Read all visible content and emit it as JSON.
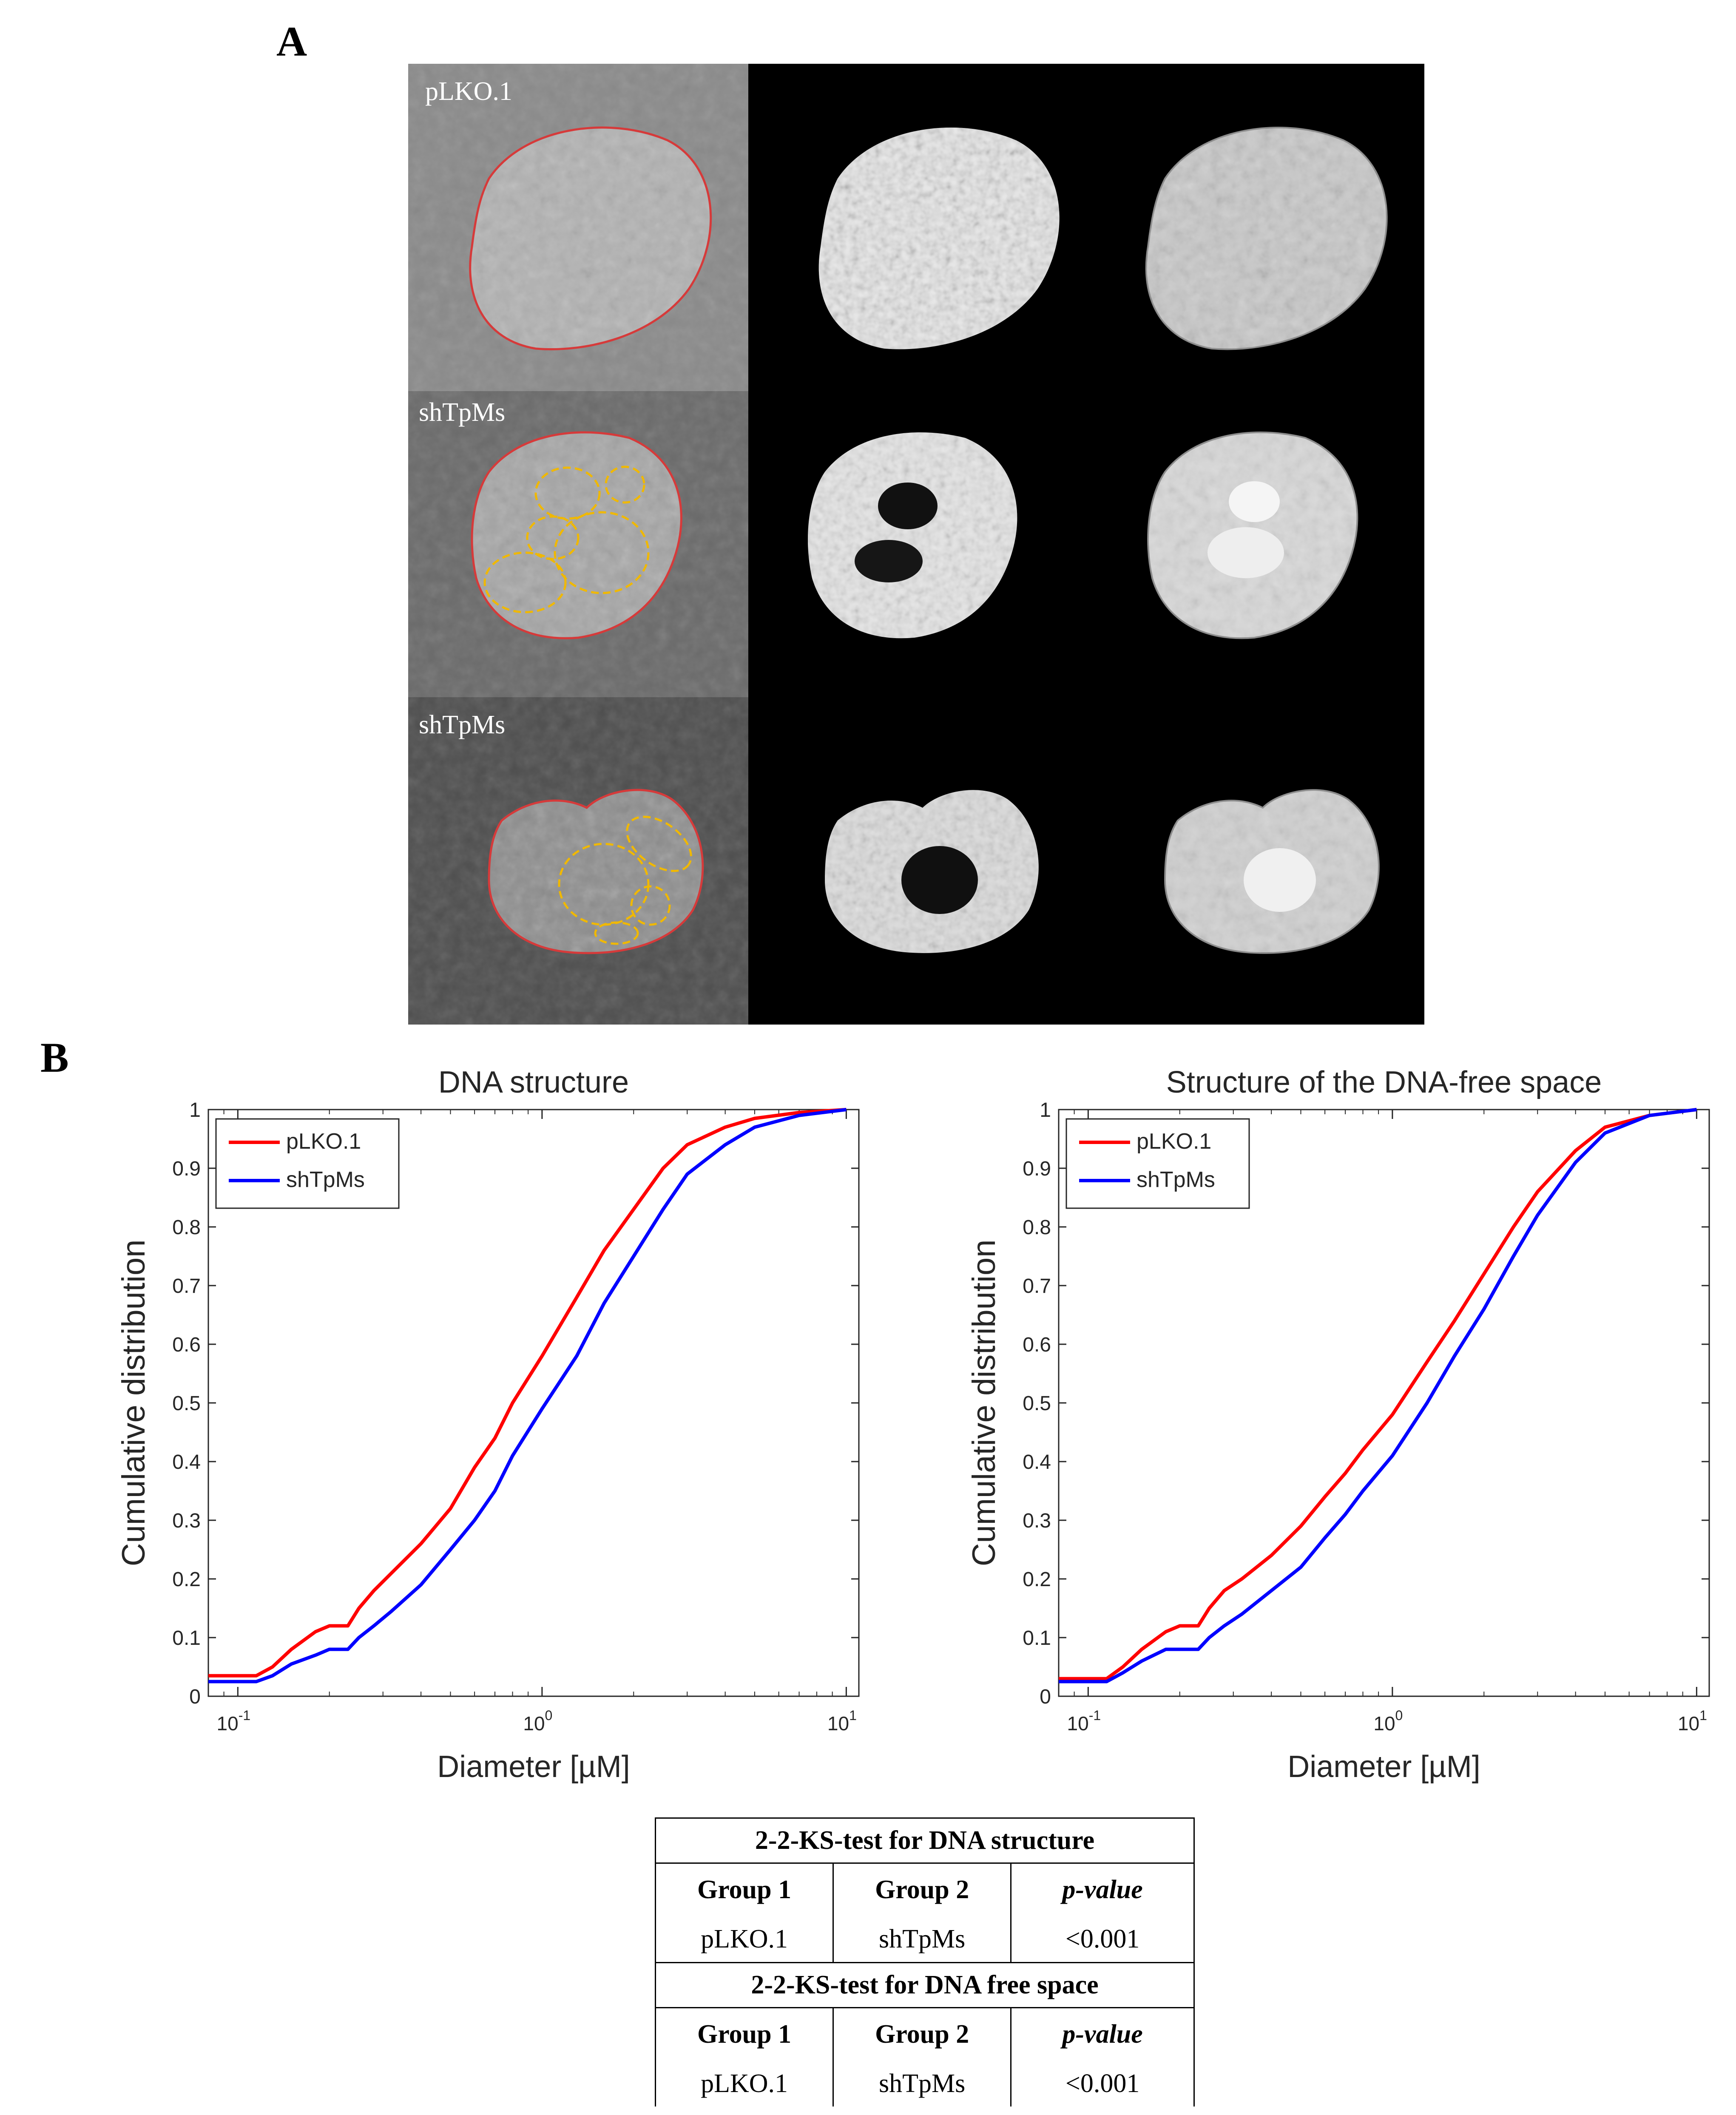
{
  "figure": {
    "panel_a_letter": "A",
    "panel_b_letter": "B"
  },
  "panel_a": {
    "row_labels": [
      "pLKO.1",
      "shTpMs",
      "shTpMs"
    ],
    "colors": {
      "contour": "#d63a3a",
      "region_outline": "#f0b800",
      "background": "#000000"
    }
  },
  "chart_data": [
    {
      "type": "line",
      "title": "DNA structure",
      "xlabel": "Diameter [µM]",
      "ylabel": "Cumulative distribution",
      "x_scale": "log",
      "xlim": [
        0.08,
        11
      ],
      "ylim": [
        0,
        1
      ],
      "x_ticks": [
        0.1,
        1,
        10
      ],
      "x_tick_labels": [
        {
          "base": "10",
          "exp": "-1"
        },
        {
          "base": "10",
          "exp": "0"
        },
        {
          "base": "10",
          "exp": "1"
        }
      ],
      "y_ticks": [
        "0",
        "0.1",
        "0.2",
        "0.3",
        "0.4",
        "0.5",
        "0.6",
        "0.7",
        "0.8",
        "0.9",
        "1"
      ],
      "legend_position": "top-left",
      "series": [
        {
          "name": "pLKO.1",
          "color": "#ff0000",
          "x": [
            0.08,
            0.115,
            0.13,
            0.15,
            0.18,
            0.2,
            0.23,
            0.25,
            0.28,
            0.32,
            0.4,
            0.5,
            0.6,
            0.7,
            0.8,
            1.0,
            1.3,
            1.6,
            2.0,
            2.5,
            3.0,
            4.0,
            5.0,
            7.0,
            10.0
          ],
          "y": [
            0.035,
            0.035,
            0.05,
            0.08,
            0.11,
            0.12,
            0.12,
            0.15,
            0.18,
            0.21,
            0.26,
            0.32,
            0.39,
            0.44,
            0.5,
            0.58,
            0.68,
            0.76,
            0.83,
            0.9,
            0.94,
            0.97,
            0.985,
            0.995,
            1.0
          ]
        },
        {
          "name": "shTpMs",
          "color": "#0000ff",
          "x": [
            0.08,
            0.115,
            0.13,
            0.15,
            0.18,
            0.2,
            0.23,
            0.25,
            0.28,
            0.32,
            0.4,
            0.5,
            0.6,
            0.7,
            0.8,
            1.0,
            1.3,
            1.6,
            2.0,
            2.5,
            3.0,
            4.0,
            5.0,
            7.0,
            10.0
          ],
          "y": [
            0.025,
            0.025,
            0.035,
            0.055,
            0.07,
            0.08,
            0.08,
            0.1,
            0.12,
            0.145,
            0.19,
            0.25,
            0.3,
            0.35,
            0.41,
            0.49,
            0.58,
            0.67,
            0.75,
            0.83,
            0.89,
            0.94,
            0.97,
            0.99,
            1.0
          ]
        }
      ]
    },
    {
      "type": "line",
      "title": "Structure of the DNA-free space",
      "xlabel": "Diameter [µM]",
      "ylabel": "Cumulative distribution",
      "x_scale": "log",
      "xlim": [
        0.08,
        11
      ],
      "ylim": [
        0,
        1
      ],
      "x_ticks": [
        0.1,
        1,
        10
      ],
      "x_tick_labels": [
        {
          "base": "10",
          "exp": "-1"
        },
        {
          "base": "10",
          "exp": "0"
        },
        {
          "base": "10",
          "exp": "1"
        }
      ],
      "y_ticks": [
        "0",
        "0.1",
        "0.2",
        "0.3",
        "0.4",
        "0.5",
        "0.6",
        "0.7",
        "0.8",
        "0.9",
        "1"
      ],
      "legend_position": "top-left",
      "series": [
        {
          "name": "pLKO.1",
          "color": "#ff0000",
          "x": [
            0.08,
            0.115,
            0.13,
            0.15,
            0.18,
            0.2,
            0.23,
            0.25,
            0.28,
            0.32,
            0.4,
            0.5,
            0.6,
            0.7,
            0.8,
            1.0,
            1.3,
            1.6,
            2.0,
            2.5,
            3.0,
            4.0,
            5.0,
            7.0,
            10.0
          ],
          "y": [
            0.03,
            0.03,
            0.05,
            0.08,
            0.11,
            0.12,
            0.12,
            0.15,
            0.18,
            0.2,
            0.24,
            0.29,
            0.34,
            0.38,
            0.42,
            0.48,
            0.57,
            0.64,
            0.72,
            0.8,
            0.86,
            0.93,
            0.97,
            0.99,
            1.0
          ]
        },
        {
          "name": "shTpMs",
          "color": "#0000ff",
          "x": [
            0.08,
            0.115,
            0.13,
            0.15,
            0.18,
            0.2,
            0.23,
            0.25,
            0.28,
            0.32,
            0.4,
            0.5,
            0.6,
            0.7,
            0.8,
            1.0,
            1.3,
            1.6,
            2.0,
            2.5,
            3.0,
            4.0,
            5.0,
            7.0,
            10.0
          ],
          "y": [
            0.025,
            0.025,
            0.04,
            0.06,
            0.08,
            0.08,
            0.08,
            0.1,
            0.12,
            0.14,
            0.18,
            0.22,
            0.27,
            0.31,
            0.35,
            0.41,
            0.5,
            0.58,
            0.66,
            0.75,
            0.82,
            0.91,
            0.96,
            0.99,
            1.0
          ]
        }
      ]
    }
  ],
  "ks_table": {
    "sections": [
      {
        "title": "2-2-KS-test for DNA structure",
        "headers": [
          "Group 1",
          "Group 2",
          "p-value"
        ],
        "row": [
          "pLKO.1",
          "shTpMs",
          "<0.001"
        ]
      },
      {
        "title": "2-2-KS-test for DNA free space",
        "headers": [
          "Group 1",
          "Group 2",
          "p-value"
        ],
        "row": [
          "pLKO.1",
          "shTpMs",
          "<0.001"
        ]
      }
    ]
  }
}
